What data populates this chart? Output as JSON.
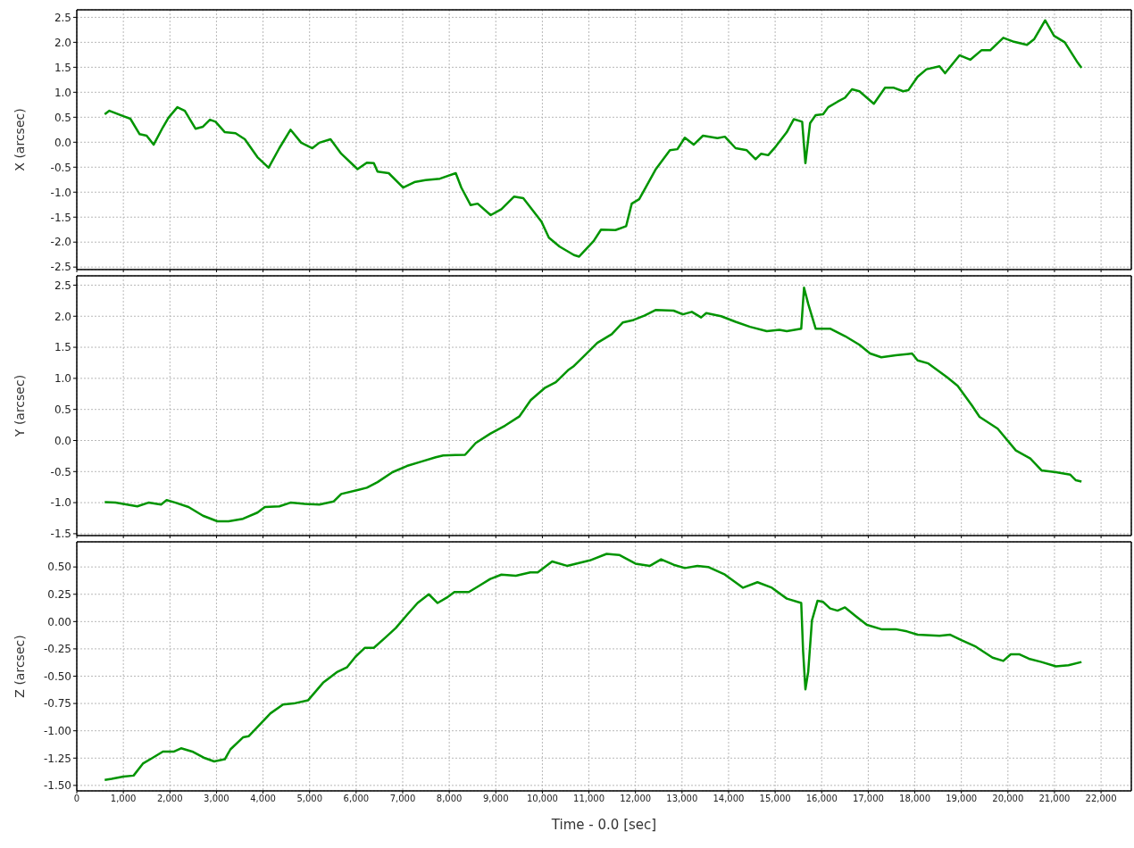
{
  "chart_data": [
    {
      "type": "line",
      "ylabel": "X (arcsec)",
      "grid": true,
      "tick_labels": "y",
      "line_style": "solid",
      "x": [
        600,
        700,
        1000,
        1150,
        1350,
        1500,
        1650,
        1850,
        1970,
        2160,
        2320,
        2550,
        2710,
        2860,
        2980,
        3180,
        3410,
        3610,
        3880,
        4120,
        4350,
        4590,
        4820,
        5060,
        5210,
        5450,
        5680,
        6030,
        6230,
        6380,
        6460,
        6700,
        7010,
        7250,
        7490,
        7800,
        8140,
        8260,
        8460,
        8610,
        8890,
        9120,
        9390,
        9590,
        9980,
        10140,
        10370,
        10680,
        10790,
        11100,
        11260,
        11570,
        11800,
        11920,
        12080,
        12430,
        12740,
        12900,
        13060,
        13250,
        13450,
        13760,
        13920,
        14150,
        14390,
        14580,
        14700,
        14850,
        15010,
        15250,
        15400,
        15580,
        15650,
        15750,
        15870,
        16030,
        16140,
        16340,
        16500,
        16650,
        16810,
        17120,
        17360,
        17550,
        17750,
        17860,
        18060,
        18250,
        18530,
        18650,
        18960,
        19190,
        19430,
        19620,
        19900,
        20130,
        20410,
        20560,
        20800,
        20990,
        21220,
        21500,
        21580
      ],
      "series": [
        {
          "color": "#009400",
          "values": [
            0.56,
            0.63,
            0.52,
            0.47,
            0.16,
            0.13,
            -0.05,
            0.3,
            0.49,
            0.7,
            0.63,
            0.27,
            0.31,
            0.45,
            0.41,
            0.2,
            0.18,
            0.06,
            -0.3,
            -0.51,
            -0.12,
            0.25,
            -0.01,
            -0.12,
            -0.01,
            0.06,
            -0.23,
            -0.54,
            -0.41,
            -0.42,
            -0.59,
            -0.62,
            -0.91,
            -0.8,
            -0.76,
            -0.73,
            -0.62,
            -0.91,
            -1.26,
            -1.23,
            -1.46,
            -1.34,
            -1.09,
            -1.12,
            -1.59,
            -1.91,
            -2.09,
            -2.26,
            -2.29,
            -1.98,
            -1.75,
            -1.76,
            -1.68,
            -1.23,
            -1.14,
            -0.55,
            -0.16,
            -0.14,
            0.09,
            -0.05,
            0.13,
            0.08,
            0.11,
            -0.12,
            -0.16,
            -0.34,
            -0.23,
            -0.26,
            -0.09,
            0.2,
            0.46,
            0.41,
            -0.42,
            0.38,
            0.54,
            0.56,
            0.7,
            0.81,
            0.89,
            1.06,
            1.02,
            0.77,
            1.09,
            1.09,
            1.02,
            1.04,
            1.31,
            1.46,
            1.52,
            1.38,
            1.74,
            1.65,
            1.84,
            1.84,
            2.09,
            2.01,
            1.95,
            2.06,
            2.44,
            2.13,
            2.0,
            1.59,
            1.49
          ]
        }
      ],
      "xlim": [
        0,
        22650
      ],
      "xticks": [
        0,
        1000,
        2000,
        3000,
        4000,
        5000,
        6000,
        7000,
        8000,
        9000,
        10000,
        11000,
        12000,
        13000,
        14000,
        15000,
        16000,
        17000,
        18000,
        19000,
        20000,
        21000,
        22000
      ],
      "ylim": [
        -2.55,
        2.65
      ],
      "yticks": [
        -2.5,
        {
          "value": -2,
          "label": "-2.0"
        },
        -1.5,
        {
          "value": -1,
          "label": "-1.0"
        },
        -0.5,
        {
          "value": 0,
          "label": "0.0"
        },
        0.5,
        {
          "value": 1,
          "label": "1.0"
        },
        1.5,
        {
          "value": 2,
          "label": "2.0"
        },
        2.5
      ]
    },
    {
      "type": "line",
      "ylabel": "Y (arcsec)",
      "grid": true,
      "tick_labels": "y",
      "line_style": "solid",
      "x": [
        600,
        830,
        1300,
        1540,
        1810,
        1930,
        2120,
        2400,
        2710,
        3020,
        3260,
        3570,
        3880,
        4040,
        4350,
        4590,
        4900,
        5210,
        5520,
        5680,
        6070,
        6230,
        6460,
        6780,
        7090,
        7400,
        7710,
        7870,
        8340,
        8570,
        8880,
        9200,
        9510,
        9750,
        10060,
        10290,
        10550,
        10680,
        10910,
        11180,
        11490,
        11730,
        11960,
        12190,
        12430,
        12820,
        13020,
        13210,
        13410,
        13520,
        13840,
        14150,
        14460,
        14820,
        15090,
        15250,
        15560,
        15620,
        15710,
        15870,
        16180,
        16500,
        16810,
        17040,
        17280,
        17590,
        17940,
        18060,
        18290,
        18690,
        18920,
        19230,
        19390,
        19780,
        20170,
        20480,
        20720,
        21030,
        21340,
        21460,
        21580
      ],
      "series": [
        {
          "color": "#009400",
          "values": [
            -0.99,
            -1.0,
            -1.06,
            -1.0,
            -1.03,
            -0.96,
            -1.0,
            -1.07,
            -1.21,
            -1.3,
            -1.3,
            -1.26,
            -1.16,
            -1.07,
            -1.06,
            -1.0,
            -1.02,
            -1.03,
            -0.98,
            -0.86,
            -0.79,
            -0.76,
            -0.67,
            -0.51,
            -0.41,
            -0.34,
            -0.27,
            -0.24,
            -0.23,
            -0.04,
            0.11,
            0.24,
            0.39,
            0.65,
            0.85,
            0.94,
            1.13,
            1.2,
            1.37,
            1.57,
            1.71,
            1.9,
            1.94,
            2.01,
            2.1,
            2.09,
            2.03,
            2.07,
            1.98,
            2.05,
            2.0,
            1.91,
            1.83,
            1.76,
            1.78,
            1.76,
            1.8,
            2.46,
            2.2,
            1.8,
            1.8,
            1.68,
            1.54,
            1.4,
            1.34,
            1.37,
            1.4,
            1.29,
            1.24,
            1.02,
            0.88,
            0.56,
            0.38,
            0.19,
            -0.16,
            -0.29,
            -0.48,
            -0.51,
            -0.55,
            -0.64,
            -0.66
          ]
        }
      ],
      "xlim": [
        0,
        22650
      ],
      "xticks": [
        0,
        1000,
        2000,
        3000,
        4000,
        5000,
        6000,
        7000,
        8000,
        9000,
        10000,
        11000,
        12000,
        13000,
        14000,
        15000,
        16000,
        17000,
        18000,
        19000,
        20000,
        21000,
        22000
      ],
      "ylim": [
        -1.53,
        2.65
      ],
      "yticks": [
        -1.5,
        {
          "value": -1,
          "label": "-1.0"
        },
        -0.5,
        {
          "value": 0,
          "label": "0.0"
        },
        0.5,
        {
          "value": 1,
          "label": "1.0"
        },
        1.5,
        {
          "value": 2,
          "label": "2.0"
        },
        2.5
      ]
    },
    {
      "type": "line",
      "ylabel": "Z (arcsec)",
      "xlabel": "Time - 0.0 [sec]",
      "grid": true,
      "line_style": "solid",
      "x": [
        600,
        750,
        1000,
        1220,
        1420,
        1620,
        1850,
        2090,
        2240,
        2480,
        2750,
        2950,
        3180,
        3300,
        3570,
        3690,
        3960,
        4160,
        4430,
        4660,
        4970,
        5290,
        5600,
        5800,
        5990,
        6190,
        6380,
        6620,
        6850,
        7090,
        7320,
        7560,
        7750,
        7950,
        8110,
        8420,
        8650,
        8880,
        9120,
        9430,
        9740,
        9900,
        10210,
        10530,
        11020,
        11380,
        11650,
        12000,
        12310,
        12550,
        12820,
        13060,
        13330,
        13560,
        13920,
        14310,
        14620,
        14930,
        15250,
        15560,
        15600,
        15650,
        15710,
        15790,
        15910,
        16030,
        16180,
        16340,
        16500,
        16730,
        16970,
        17280,
        17590,
        17830,
        18060,
        18530,
        18760,
        19000,
        19310,
        19670,
        19900,
        20060,
        20250,
        20450,
        20720,
        21030,
        21300,
        21580
      ],
      "series": [
        {
          "color": "#009400",
          "values": [
            -1.45,
            -1.44,
            -1.42,
            -1.41,
            -1.3,
            -1.25,
            -1.19,
            -1.19,
            -1.16,
            -1.19,
            -1.25,
            -1.28,
            -1.26,
            -1.17,
            -1.06,
            -1.05,
            -0.93,
            -0.84,
            -0.76,
            -0.75,
            -0.72,
            -0.56,
            -0.46,
            -0.42,
            -0.32,
            -0.24,
            -0.24,
            -0.15,
            -0.06,
            0.06,
            0.17,
            0.25,
            0.17,
            0.22,
            0.27,
            0.27,
            0.33,
            0.39,
            0.43,
            0.42,
            0.45,
            0.45,
            0.55,
            0.51,
            0.56,
            0.62,
            0.61,
            0.53,
            0.51,
            0.57,
            0.52,
            0.49,
            0.51,
            0.5,
            0.43,
            0.31,
            0.36,
            0.31,
            0.21,
            0.17,
            -0.27,
            -0.62,
            -0.46,
            0.01,
            0.19,
            0.18,
            0.12,
            0.1,
            0.13,
            0.05,
            -0.03,
            -0.07,
            -0.07,
            -0.09,
            -0.12,
            -0.13,
            -0.12,
            -0.17,
            -0.23,
            -0.33,
            -0.36,
            -0.3,
            -0.3,
            -0.34,
            -0.37,
            -0.41,
            -0.4,
            -0.37
          ]
        }
      ],
      "xlim": [
        0,
        22650
      ],
      "xticks": [
        0,
        {
          "value": 1000,
          "label": "1,000"
        },
        {
          "value": 2000,
          "label": "2,000"
        },
        {
          "value": 3000,
          "label": "3,000"
        },
        {
          "value": 4000,
          "label": "4,000"
        },
        {
          "value": 5000,
          "label": "5,000"
        },
        {
          "value": 6000,
          "label": "6,000"
        },
        {
          "value": 7000,
          "label": "7,000"
        },
        {
          "value": 8000,
          "label": "8,000"
        },
        {
          "value": 9000,
          "label": "9,000"
        },
        {
          "value": 10000,
          "label": "10,000"
        },
        {
          "value": 11000,
          "label": "11,000"
        },
        {
          "value": 12000,
          "label": "12,000"
        },
        {
          "value": 13000,
          "label": "13,000"
        },
        {
          "value": 14000,
          "label": "14,000"
        },
        {
          "value": 15000,
          "label": "15,000"
        },
        {
          "value": 16000,
          "label": "16,000"
        },
        {
          "value": 17000,
          "label": "17,000"
        },
        {
          "value": 18000,
          "label": "18,000"
        },
        {
          "value": 19000,
          "label": "19,000"
        },
        {
          "value": 20000,
          "label": "20,000"
        },
        {
          "value": 21000,
          "label": "21,000"
        },
        {
          "value": 22000,
          "label": "22,000"
        }
      ],
      "ylim": [
        -1.55,
        0.73
      ],
      "yticks": [
        {
          "value": -1.5,
          "label": "-1.50"
        },
        {
          "value": -1.25,
          "label": "-1.25"
        },
        {
          "value": -1,
          "label": "-1.00"
        },
        {
          "value": -0.75,
          "label": "-0.75"
        },
        {
          "value": -0.5,
          "label": "-0.50"
        },
        {
          "value": -0.25,
          "label": "-0.25"
        },
        {
          "value": 0,
          "label": "0.00"
        },
        {
          "value": 0.25,
          "label": "0.25"
        },
        {
          "value": 0.5,
          "label": "0.50"
        }
      ]
    }
  ]
}
